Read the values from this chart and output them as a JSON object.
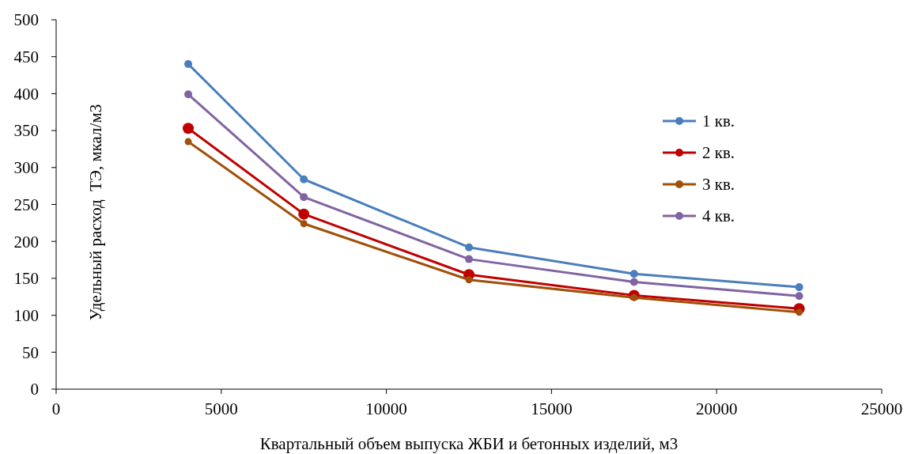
{
  "chart_data": {
    "type": "line",
    "xlabel": "Квартальный объем выпуска ЖБИ и бетонных изделий, м3",
    "ylabel": "Удельный расход  ТЭ, мкал/м3",
    "x": [
      4000,
      7500,
      12500,
      17500,
      22500
    ],
    "series": [
      {
        "name": "1 кв.",
        "color": "#4a7ebb",
        "values": [
          440,
          284,
          192,
          156,
          138
        ]
      },
      {
        "name": "2 кв.",
        "color": "#c00000",
        "values": [
          353,
          237,
          155,
          127,
          109
        ]
      },
      {
        "name": "3 кв.",
        "color": "#a0500a",
        "values": [
          335,
          224,
          148,
          124,
          104
        ]
      },
      {
        "name": "4 кв.",
        "color": "#8064a2",
        "values": [
          399,
          260,
          176,
          145,
          126
        ]
      }
    ],
    "xlim": [
      0,
      25000
    ],
    "xticks": [
      0,
      5000,
      10000,
      15000,
      20000,
      25000
    ],
    "ylim": [
      0,
      500
    ],
    "yticks": [
      0,
      50,
      100,
      150,
      200,
      250,
      300,
      350,
      400,
      450,
      500
    ],
    "legend": "top right",
    "marker": "circle",
    "grid": false
  }
}
